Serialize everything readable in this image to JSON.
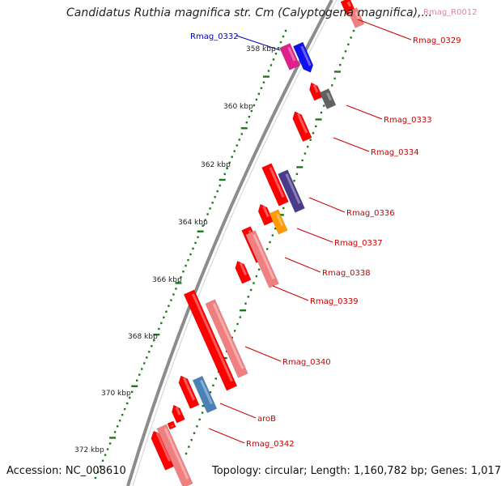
{
  "title": "Candidatus Ruthia magnifica str. Cm (Calyptogena magnifica),...",
  "footer": {
    "accession": "Accession: NC_008610",
    "topology": "Topology: circular; Length: 1,160,782 bp; Genes: 1,017"
  },
  "colors": {
    "backbone": "#8c8c8c",
    "tick": "#1a7a1a",
    "label": "#cc0000",
    "label_highlight": "#0000cc",
    "label_rna": "#e87ea0",
    "gene_red": "#ff0000",
    "gene_pink": "#f08080",
    "gene_magenta": "#e0208a",
    "gene_blue": "#1010ee",
    "gene_gray": "#606060",
    "gene_purple": "#4a3a8a",
    "gene_orange": "#ff9900",
    "gene_steel": "#4a82b8"
  },
  "kbp_labels": [
    "358 kbp",
    "360 kbp",
    "362 kbp",
    "364 kbp",
    "366 kbp",
    "368 kbp",
    "370 kbp",
    "372 kbp"
  ],
  "gene_labels": [
    {
      "text": "Rmag_R0012",
      "kind": "rna"
    },
    {
      "text": "Rmag_0329",
      "kind": "gene"
    },
    {
      "text": "Rmag_0332",
      "kind": "highlight"
    },
    {
      "text": "Rmag_0333",
      "kind": "gene"
    },
    {
      "text": "Rmag_0334",
      "kind": "gene"
    },
    {
      "text": "Rmag_0336",
      "kind": "gene"
    },
    {
      "text": "Rmag_0337",
      "kind": "gene"
    },
    {
      "text": "Rmag_0338",
      "kind": "gene"
    },
    {
      "text": "Rmag_0339",
      "kind": "gene"
    },
    {
      "text": "Rmag_0340",
      "kind": "gene"
    },
    {
      "text": "aroB",
      "kind": "gene"
    },
    {
      "text": "Rmag_0342",
      "kind": "gene"
    }
  ]
}
